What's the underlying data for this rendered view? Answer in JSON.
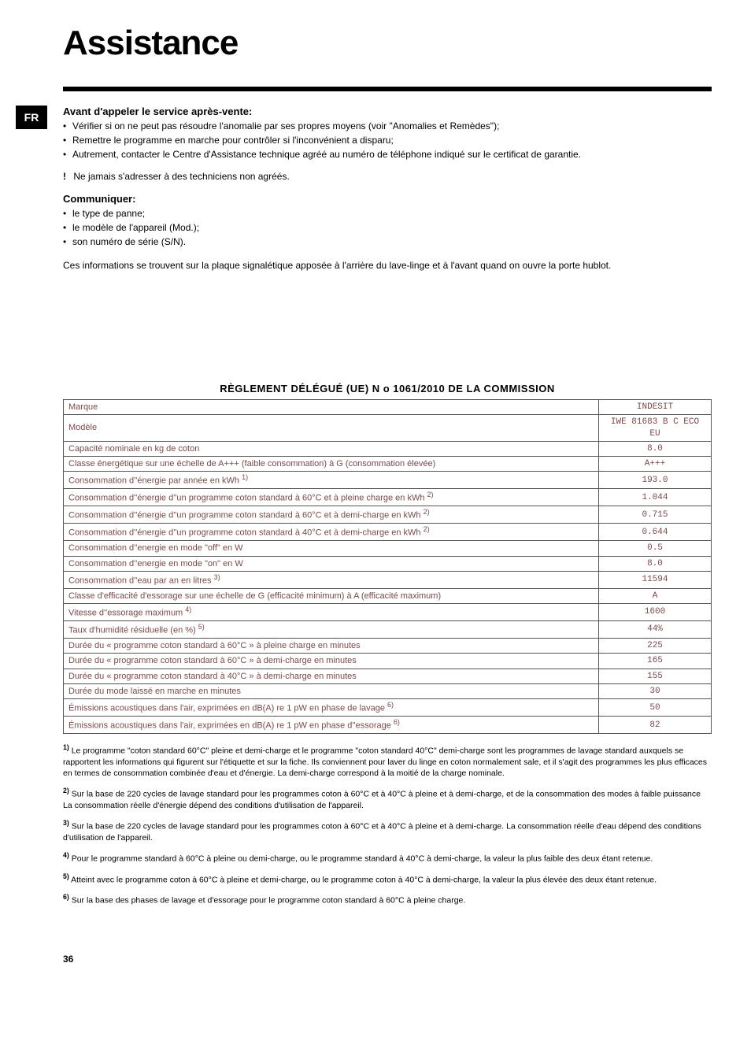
{
  "page": {
    "title": "Assistance",
    "lang_badge": "FR",
    "page_number": "36"
  },
  "section1": {
    "heading": "Avant d'appeler le service après-vente:",
    "bullets": [
      "Vérifier si on ne peut pas résoudre l'anomalie par ses propres moyens (voir \"Anomalies et Remèdes\");",
      "Remettre le programme en marche pour contrôler si l'inconvénient a disparu;",
      "Autrement, contacter le Centre d'Assistance technique agréé au numéro de téléphone indiqué sur le certificat de garantie."
    ],
    "warning_mark": "!",
    "warning_text": "Ne jamais s'adresser à des techniciens non agréés."
  },
  "section2": {
    "heading": "Communiquer:",
    "bullets": [
      "le type de panne;",
      "le modèle de l'appareil (Mod.);",
      "son numéro de série (S/N)."
    ],
    "para": "Ces informations se trouvent sur la plaque signalétique apposée à l'arrière du lave-linge et à l'avant quand on ouvre la porte hublot."
  },
  "regulation": {
    "title": "RÈGLEMENT DÉLÉGUÉ (UE) N o 1061/2010 DE LA COMMISSION",
    "rows": [
      {
        "label": "Marque",
        "sup": "",
        "value": "INDESIT"
      },
      {
        "label": "Modèle",
        "sup": "",
        "value": "IWE 81683 B C ECO EU"
      },
      {
        "label": "Capacité nominale en kg de coton",
        "sup": "",
        "value": "8.0"
      },
      {
        "label": "Classe énergétique sur une échelle de A+++ (faible consommation) à G (consommation élevée)",
        "sup": "",
        "value": "A+++"
      },
      {
        "label": "Consommation d''énergie par année en kWh ",
        "sup": "1)",
        "value": "193.0"
      },
      {
        "label": "Consommation d''énergie d''un programme coton standard à 60°C et à pleine charge en kWh ",
        "sup": "2)",
        "value": "1.044"
      },
      {
        "label": "Consommation d''énergie d''un programme coton standard à 60°C et à demi-charge en kWh ",
        "sup": "2)",
        "value": "0.715"
      },
      {
        "label": "Consommation d''énergie d''un programme coton standard à 40°C et à demi-charge en kWh ",
        "sup": "2)",
        "value": "0.644"
      },
      {
        "label": "Consommation d''energie en mode \"off\" en W",
        "sup": "",
        "value": "0.5"
      },
      {
        "label": "Consommation d''energie en mode \"on\" en W",
        "sup": "",
        "value": "8.0"
      },
      {
        "label": "Consommation d''eau par an en litres ",
        "sup": "3)",
        "value": "11594"
      },
      {
        "label": "Classe d'efficacité d'essorage sur une échelle de G (efficacité minimum) à A (efficacité maximum)",
        "sup": "",
        "value": "A"
      },
      {
        "label": "Vitesse d''essorage maximum ",
        "sup": "4)",
        "value": "1600"
      },
      {
        "label": "Taux d'humidité résiduelle (en %) ",
        "sup": "5)",
        "value": "44%"
      },
      {
        "label": "Durée du « programme coton standard à 60°C » à pleine charge en minutes",
        "sup": "",
        "value": "225"
      },
      {
        "label": "Durée du « programme coton standard à 60°C » à demi-charge en minutes",
        "sup": "",
        "value": "165"
      },
      {
        "label": "Durée du « programme coton standard à 40°C » à demi-charge en minutes",
        "sup": "",
        "value": "155"
      },
      {
        "label": "Durée du mode laissé en marche en minutes",
        "sup": "",
        "value": "30"
      },
      {
        "label": "Émissions acoustiques dans l'air, exprimées en dB(A) re 1 pW en phase de lavage ",
        "sup": "6)",
        "value": "50"
      },
      {
        "label": "Émissions acoustiques dans l'air, exprimées en dB(A) re 1 pW en phase d''essorage ",
        "sup": "6)",
        "value": "82"
      }
    ]
  },
  "footnotes": [
    {
      "num": "1)",
      "text": "Le programme \"coton standard 60°C\" pleine et demi-charge et le programme \"coton standard 40°C\" demi-charge sont les programmes de lavage standard auxquels se rapportent les informations qui figurent sur l'étiquette et sur la fiche. Ils conviennent pour laver du linge en coton normalement sale, et il s'agit des programmes les plus efficaces en termes de consommation combinée d'eau et d'énergie. La demi-charge correspond à la moitié de la charge nominale."
    },
    {
      "num": "2)",
      "text": "Sur la base de 220 cycles de lavage standard pour les programmes coton à 60°C et à 40°C à pleine et à demi-charge, et de la consommation des modes à faible puissance La consommation réelle d'énergie dépend des conditions d'utilisation de l'appareil."
    },
    {
      "num": "3)",
      "text": "Sur la base de 220 cycles de lavage standard pour les programmes coton à 60°C et à 40°C à pleine et à demi-charge. La consommation réelle d'eau dépend des conditions d'utilisation de l'appareil."
    },
    {
      "num": "4)",
      "text": "Pour le programme standard à 60°C à pleine ou demi-charge, ou le programme standard à 40°C à demi-charge, la valeur la plus faible des deux étant retenue."
    },
    {
      "num": "5)",
      "text": "Atteint avec le programme coton à 60°C à pleine et demi-charge, ou le programme coton à 40°C à demi-charge, la valeur la plus élevée des deux étant retenue."
    },
    {
      "num": "6)",
      "text": "Sur la base des phases de lavage et d'essorage pour le programme coton standard à 60°C à pleine charge."
    }
  ]
}
